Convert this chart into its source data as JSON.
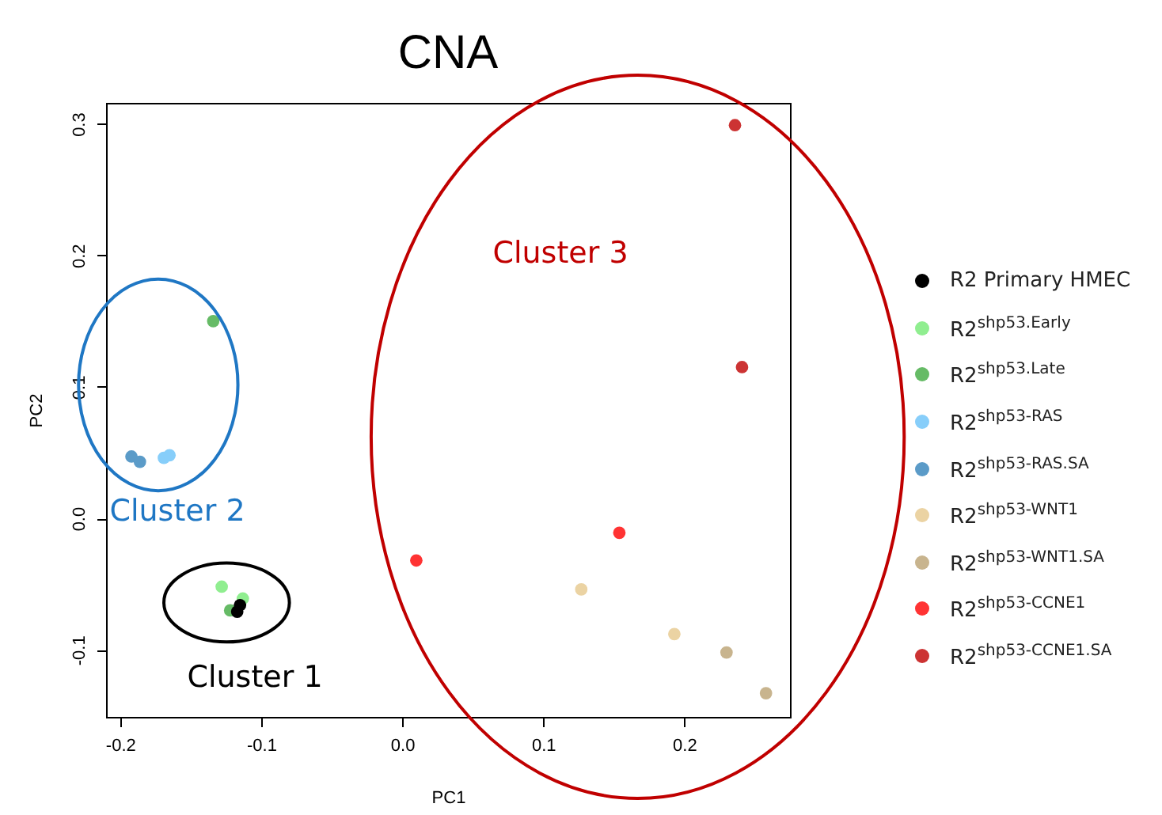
{
  "chart_data": {
    "type": "scatter",
    "title": "CNA",
    "xlabel": "PC1",
    "ylabel": "PC2",
    "xlim": [
      -0.21,
      0.275
    ],
    "ylim": [
      -0.151,
      0.316
    ],
    "xticks": [
      -0.2,
      -0.1,
      {
        "value": 0,
        "label": "0.0"
      },
      0.1,
      0.2
    ],
    "yticks": [
      -0.1,
      {
        "value": 0,
        "label": "0.0"
      },
      0.1,
      0.2,
      0.3
    ],
    "grid": false,
    "legend": "right",
    "marker": "circle",
    "series": [
      {
        "name": "R2 Primary HMEC",
        "color": "#000000",
        "x": [
          -0.117,
          -0.115
        ],
        "values": [
          -0.071,
          -0.066
        ]
      },
      {
        "name": "R2$^{shp53.Early}$",
        "color": "#90ee90",
        "x": [
          -0.128,
          -0.113
        ],
        "values": [
          -0.052,
          -0.061
        ]
      },
      {
        "name": "R2$^{shp53.Late}$",
        "color": "#66bb66",
        "x": [
          -0.134,
          -0.122
        ],
        "values": [
          0.15,
          -0.07
        ]
      },
      {
        "name": "R2$^{shp53-RAS}$",
        "color": "#87cefa",
        "x": [
          -0.169,
          -0.165
        ],
        "values": [
          0.046,
          0.048
        ]
      },
      {
        "name": "R2$^{shp53-RAS.SA}$",
        "color": "#5b9bc8",
        "x": [
          -0.192,
          -0.186
        ],
        "values": [
          0.047,
          0.043
        ]
      },
      {
        "name": "R2$^{shp53-WNT1}$",
        "color": "#ebd3a3",
        "x": [
          0.127,
          0.193
        ],
        "values": [
          -0.054,
          -0.088
        ]
      },
      {
        "name": "R2$^{shp53-WNT1.SA}$",
        "color": "#c8b48e",
        "x": [
          0.23,
          0.258
        ],
        "values": [
          -0.102,
          -0.133
        ]
      },
      {
        "name": "R2$^{shp53-CCNE1}$",
        "color": "#ff3333",
        "x": [
          0.01,
          0.154
        ],
        "values": [
          -0.032,
          -0.011
        ]
      },
      {
        "name": "R2$^{shp53-CCNE1.SA}$",
        "color": "#cc3333",
        "x": [
          0.236,
          0.241
        ],
        "values": [
          0.299,
          0.115
        ]
      }
    ],
    "annotations": [
      "Cluster 2",
      "Cluster 1",
      "Cluster 3"
    ]
  }
}
